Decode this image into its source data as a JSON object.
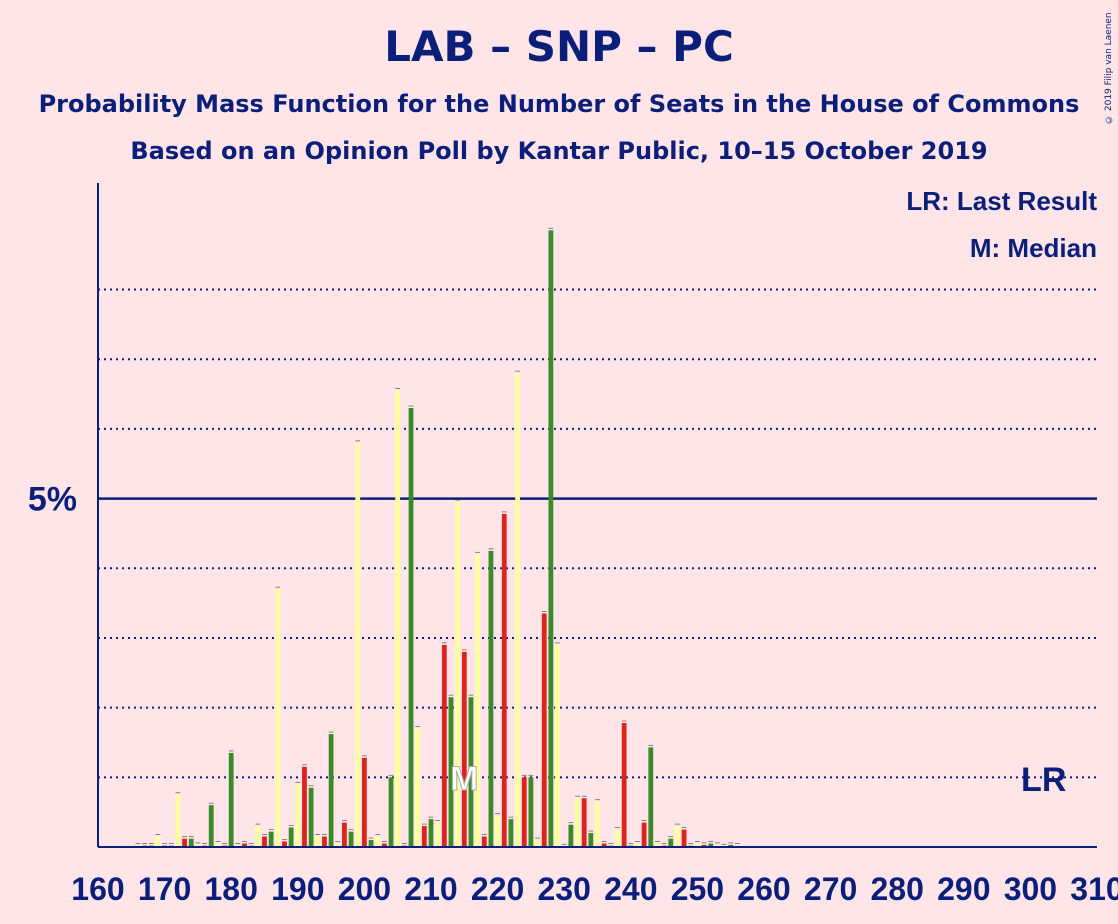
{
  "title": "LAB – SNP – PC",
  "subtitle1": "Probability Mass Function for the Number of Seats in the House of Commons",
  "subtitle2": "Based on an Opinion Poll by Kantar Public, 10–15 October 2019",
  "copyright": "© 2019 Filip van Laenen",
  "legend": {
    "lr": "LR: Last Result",
    "median": "M: Median"
  },
  "markers": {
    "lr_label": "LR",
    "median_label": "M"
  },
  "colors": {
    "background": "#FFE5E8",
    "axis": "#0B1F7A",
    "yellow": "#FFFFA0",
    "red": "#E0221D",
    "green": "#3A8A2A"
  },
  "chart_data": {
    "type": "bar",
    "xlim": [
      160,
      310
    ],
    "ylim": [
      0,
      9.5
    ],
    "x_ticks": [
      160,
      170,
      180,
      190,
      200,
      210,
      220,
      230,
      240,
      250,
      260,
      270,
      280,
      290,
      300,
      310
    ],
    "y_major_tick": {
      "value": 5,
      "label": "5%"
    },
    "y_gridlines": [
      1,
      2,
      3,
      4,
      6,
      7,
      8
    ],
    "last_result": 302,
    "median": 215,
    "series": [
      {
        "name": "yellow",
        "x": [
          166,
          169,
          172,
          175,
          178,
          181,
          184,
          187,
          190,
          193,
          196,
          199,
          202,
          205,
          208,
          211,
          214,
          217,
          220,
          223,
          226,
          229,
          232,
          235,
          238,
          241,
          244,
          247,
          250,
          253,
          256
        ],
        "values": [
          0.02,
          0.15,
          0.75,
          0.03,
          0.05,
          0.02,
          0.3,
          3.7,
          0.9,
          0.15,
          0.05,
          5.8,
          0.15,
          6.55,
          1.7,
          0.35,
          4.95,
          4.2,
          0.45,
          6.8,
          0.1,
          2.9,
          0.7,
          0.65,
          0.25,
          0.05,
          0.05,
          0.3,
          0.05,
          0.03,
          0.02
        ]
      },
      {
        "name": "red",
        "x": [
          167,
          170,
          173,
          176,
          179,
          182,
          185,
          188,
          191,
          194,
          197,
          200,
          203,
          206,
          209,
          212,
          215,
          218,
          221,
          224,
          227,
          230,
          233,
          236,
          239,
          242,
          245,
          248,
          251,
          254
        ],
        "values": [
          0.02,
          0.02,
          0.12,
          0.02,
          0.02,
          0.05,
          0.15,
          0.08,
          1.15,
          0.15,
          0.35,
          1.28,
          0.05,
          0.02,
          0.3,
          2.9,
          2.8,
          0.15,
          4.78,
          1.0,
          3.35,
          0.01,
          0.7,
          0.05,
          1.78,
          0.35,
          0.02,
          0.25,
          0.03,
          0.01
        ]
      },
      {
        "name": "green",
        "x": [
          168,
          171,
          174,
          177,
          180,
          183,
          186,
          189,
          192,
          195,
          198,
          201,
          204,
          207,
          210,
          213,
          216,
          219,
          222,
          225,
          228,
          231,
          234,
          237,
          240,
          243,
          246,
          249,
          252,
          255
        ],
        "values": [
          0.02,
          0.02,
          0.12,
          0.6,
          1.35,
          0.02,
          0.22,
          0.28,
          0.85,
          1.62,
          0.22,
          0.1,
          1.0,
          6.3,
          0.4,
          2.15,
          2.15,
          4.25,
          0.4,
          1.0,
          8.85,
          0.32,
          0.2,
          0.02,
          0.02,
          1.43,
          0.12,
          0.02,
          0.05,
          0.03
        ]
      }
    ]
  }
}
